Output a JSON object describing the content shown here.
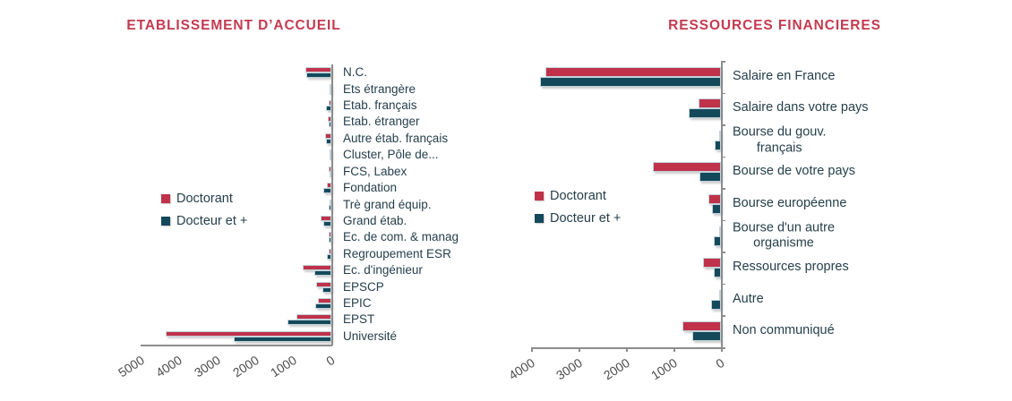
{
  "page": {
    "background": "#ffffff"
  },
  "colors": {
    "title": "#c43a50",
    "doctorant": "#c0314a",
    "docteur_et_plus": "#14495c",
    "label_text": "#253f4b",
    "tick_text": "#4c4c4c",
    "axis": "#8c8c8c"
  },
  "chart_data": [
    {
      "type": "bar",
      "orientation": "horizontal-reversed",
      "title": "ETABLISSEMENT D’ACCUEIL",
      "value_axis": {
        "ticks": [
          5000,
          4000,
          3000,
          2000,
          1000,
          0
        ],
        "max": 5000,
        "direction": "values-increase-leftward"
      },
      "legend_position": "middle-left",
      "grid": false,
      "categories": [
        "N.C.",
        "Ets étrangère",
        "Etab. français",
        "Etab. étranger",
        "Autre étab. français",
        "Cluster, Pôle de...",
        "FCS, Labex",
        "Fondation",
        "Trè grand équip.",
        "Grand étab.",
        "Ec. de com. & manag",
        "Regroupement ESR",
        "Ec. d'ingénieur",
        "EPSCP",
        "EPIC",
        "EPST",
        "Université"
      ],
      "series": [
        {
          "name": "Doctorant",
          "color": "#c0314a",
          "values": [
            690,
            40,
            80,
            95,
            175,
            55,
            80,
            110,
            55,
            290,
            60,
            60,
            760,
            395,
            355,
            905,
            4350
          ]
        },
        {
          "name": "Docteur et +",
          "color": "#14495c",
          "values": [
            660,
            15,
            130,
            80,
            135,
            55,
            40,
            215,
            80,
            205,
            70,
            110,
            450,
            235,
            430,
            1140,
            2550
          ]
        }
      ]
    },
    {
      "type": "bar",
      "orientation": "horizontal-reversed",
      "title": "RESSOURCES FINANCIERES",
      "value_axis": {
        "ticks": [
          4000,
          3000,
          2000,
          1000,
          0
        ],
        "max": 4000,
        "direction": "values-increase-leftward"
      },
      "legend_position": "middle-left",
      "grid": false,
      "categories": [
        "Salaire en France",
        "Salaire dans votre pays",
        "Bourse du gouv.\nfrançais",
        "Bourse de votre pays",
        "Bourse européenne",
        "Bourse d'un autre\norganisme",
        "Ressources propres",
        "Autre",
        "Non communiqué"
      ],
      "series": [
        {
          "name": "Doctorant",
          "color": "#c0314a",
          "values": [
            3690,
            480,
            15,
            1430,
            255,
            20,
            380,
            15,
            815
          ]
        },
        {
          "name": "Docteur et +",
          "color": "#14495c",
          "values": [
            3820,
            670,
            130,
            445,
            180,
            160,
            150,
            210,
            605
          ]
        }
      ]
    }
  ]
}
